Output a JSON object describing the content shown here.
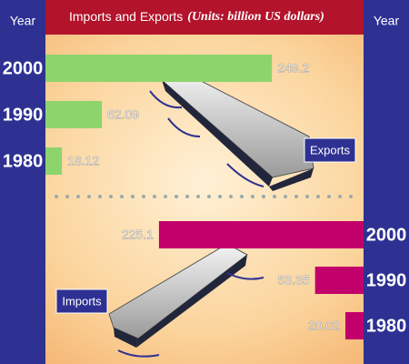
{
  "chart_data": {
    "type": "bar",
    "title": "Imports and Exports",
    "subtitle": "(Units: billion US dollars)",
    "axis_label": "Year",
    "categories": [
      "2000",
      "1990",
      "1980"
    ],
    "series": [
      {
        "name": "Exports",
        "color": "#8ed46c",
        "values": [
          249.2,
          62.09,
          18.12
        ]
      },
      {
        "name": "Imports",
        "color": "#c2006b",
        "values": [
          225.1,
          53.35,
          20.02
        ]
      }
    ]
  }
}
